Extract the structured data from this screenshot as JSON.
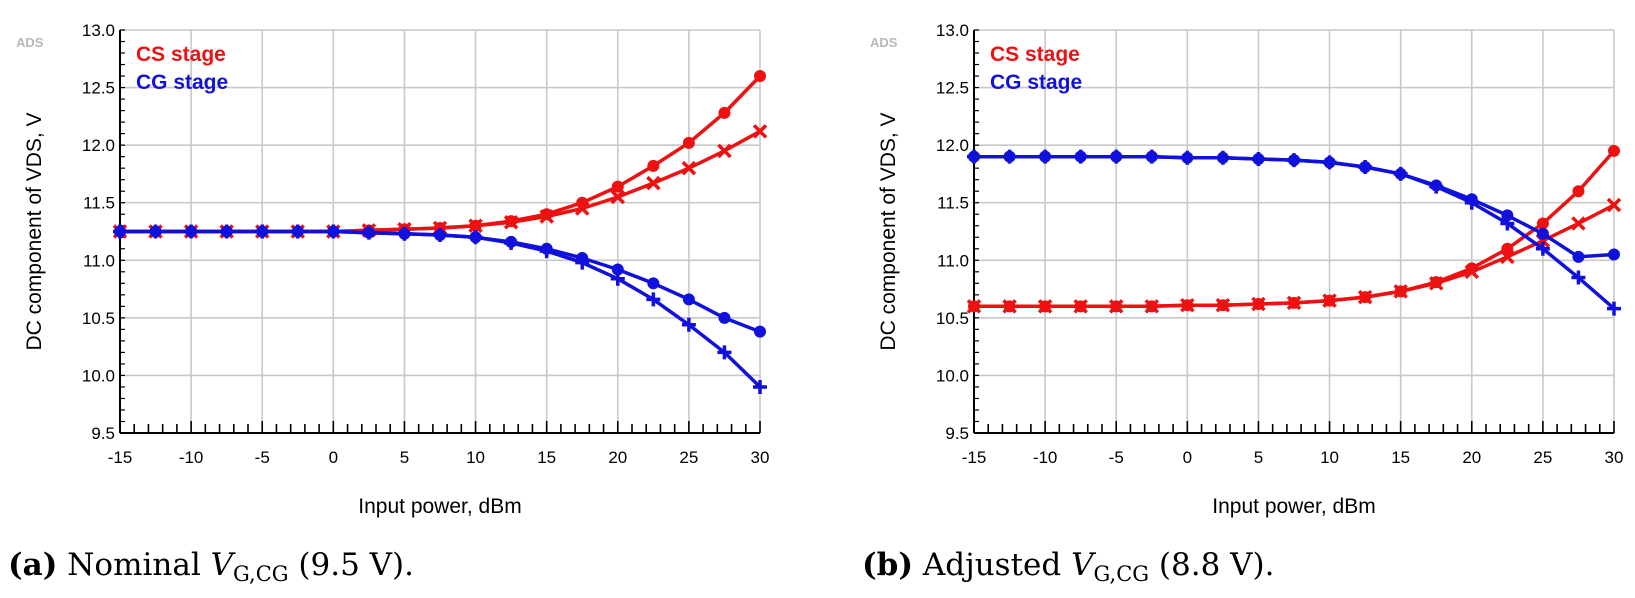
{
  "chart_data": [
    {
      "type": "line",
      "badge": "ADS",
      "xlabel": "Input power, dBm",
      "ylabel": "DC component of VDS, V",
      "xlim": [
        -15,
        30
      ],
      "ylim": [
        9.5,
        13.0
      ],
      "xticks": [
        -15,
        -10,
        -5,
        0,
        5,
        10,
        15,
        20,
        25,
        30
      ],
      "xtick_labels": [
        "-15",
        "-10",
        "-5",
        "0",
        "5",
        "10",
        "15",
        "20",
        "25",
        "30"
      ],
      "yticks": [
        9.5,
        10.0,
        10.5,
        11.0,
        11.5,
        12.0,
        12.5,
        13.0
      ],
      "ytick_labels": [
        "9.5",
        "10.0",
        "10.5",
        "11.0",
        "11.5",
        "12.0",
        "12.5",
        "13.0"
      ],
      "grid": true,
      "legend": [
        {
          "label": "CS stage",
          "color": "#ee1111"
        },
        {
          "label": "CG stage",
          "color": "#1111dd"
        }
      ],
      "series": [
        {
          "name": "CS stage (circle)",
          "stage": "CS",
          "color": "#ee1111",
          "marker": "circle",
          "x": [
            -15,
            -12.5,
            -10,
            -7.5,
            -5,
            -2.5,
            0,
            2.5,
            5,
            7.5,
            10,
            12.5,
            15,
            17.5,
            20,
            22.5,
            25,
            27.5,
            30
          ],
          "y": [
            11.25,
            11.25,
            11.25,
            11.25,
            11.25,
            11.25,
            11.25,
            11.26,
            11.27,
            11.28,
            11.3,
            11.34,
            11.4,
            11.5,
            11.64,
            11.82,
            12.02,
            12.28,
            12.6
          ]
        },
        {
          "name": "CS stage (cross)",
          "stage": "CS",
          "color": "#ee1111",
          "marker": "x",
          "x": [
            -15,
            -12.5,
            -10,
            -7.5,
            -5,
            -2.5,
            0,
            2.5,
            5,
            7.5,
            10,
            12.5,
            15,
            17.5,
            20,
            22.5,
            25,
            27.5,
            30
          ],
          "y": [
            11.25,
            11.25,
            11.25,
            11.25,
            11.25,
            11.25,
            11.25,
            11.26,
            11.27,
            11.28,
            11.3,
            11.33,
            11.38,
            11.45,
            11.55,
            11.67,
            11.8,
            11.95,
            12.12
          ]
        },
        {
          "name": "CG stage (circle)",
          "stage": "CG",
          "color": "#1111dd",
          "marker": "circle",
          "x": [
            -15,
            -12.5,
            -10,
            -7.5,
            -5,
            -2.5,
            0,
            2.5,
            5,
            7.5,
            10,
            12.5,
            15,
            17.5,
            20,
            22.5,
            25,
            27.5,
            30
          ],
          "y": [
            11.25,
            11.25,
            11.25,
            11.25,
            11.25,
            11.25,
            11.25,
            11.24,
            11.23,
            11.22,
            11.2,
            11.16,
            11.1,
            11.02,
            10.92,
            10.8,
            10.66,
            10.5,
            10.38
          ]
        },
        {
          "name": "CG stage (cross)",
          "stage": "CG",
          "color": "#1111dd",
          "marker": "plus",
          "x": [
            -15,
            -12.5,
            -10,
            -7.5,
            -5,
            -2.5,
            0,
            2.5,
            5,
            7.5,
            10,
            12.5,
            15,
            17.5,
            20,
            22.5,
            25,
            27.5,
            30
          ],
          "y": [
            11.25,
            11.25,
            11.25,
            11.25,
            11.25,
            11.25,
            11.25,
            11.24,
            11.23,
            11.22,
            11.2,
            11.15,
            11.08,
            10.98,
            10.84,
            10.66,
            10.44,
            10.2,
            9.9
          ]
        }
      ]
    },
    {
      "type": "line",
      "badge": "ADS",
      "xlabel": "Input power, dBm",
      "ylabel": "DC component of VDS, V",
      "xlim": [
        -15,
        30
      ],
      "ylim": [
        9.5,
        13.0
      ],
      "xticks": [
        -15,
        -10,
        -5,
        0,
        5,
        10,
        15,
        20,
        25,
        30
      ],
      "xtick_labels": [
        "-15",
        "-10",
        "-5",
        "0",
        "5",
        "10",
        "15",
        "20",
        "25",
        "30"
      ],
      "yticks": [
        9.5,
        10.0,
        10.5,
        11.0,
        11.5,
        12.0,
        12.5,
        13.0
      ],
      "ytick_labels": [
        "9.5",
        "10.0",
        "10.5",
        "11.0",
        "11.5",
        "12.0",
        "12.5",
        "13.0"
      ],
      "grid": true,
      "legend": [
        {
          "label": "CS stage",
          "color": "#ee1111"
        },
        {
          "label": "CG stage",
          "color": "#1111dd"
        }
      ],
      "series": [
        {
          "name": "CS stage (circle)",
          "stage": "CS",
          "color": "#ee1111",
          "marker": "circle",
          "x": [
            -15,
            -12.5,
            -10,
            -7.5,
            -5,
            -2.5,
            0,
            2.5,
            5,
            7.5,
            10,
            12.5,
            15,
            17.5,
            20,
            22.5,
            25,
            27.5,
            30
          ],
          "y": [
            10.6,
            10.6,
            10.6,
            10.6,
            10.6,
            10.6,
            10.61,
            10.61,
            10.62,
            10.63,
            10.65,
            10.68,
            10.73,
            10.81,
            10.93,
            11.1,
            11.32,
            11.6,
            11.95
          ]
        },
        {
          "name": "CS stage (cross)",
          "stage": "CS",
          "color": "#ee1111",
          "marker": "x",
          "x": [
            -15,
            -12.5,
            -10,
            -7.5,
            -5,
            -2.5,
            0,
            2.5,
            5,
            7.5,
            10,
            12.5,
            15,
            17.5,
            20,
            22.5,
            25,
            27.5,
            30
          ],
          "y": [
            10.6,
            10.6,
            10.6,
            10.6,
            10.6,
            10.6,
            10.61,
            10.61,
            10.62,
            10.63,
            10.65,
            10.68,
            10.73,
            10.8,
            10.9,
            11.03,
            11.17,
            11.32,
            11.48
          ]
        },
        {
          "name": "CG stage (circle)",
          "stage": "CG",
          "color": "#1111dd",
          "marker": "circle",
          "x": [
            -15,
            -12.5,
            -10,
            -7.5,
            -5,
            -2.5,
            0,
            2.5,
            5,
            7.5,
            10,
            12.5,
            15,
            17.5,
            20,
            22.5,
            25,
            27.5,
            30
          ],
          "y": [
            11.9,
            11.9,
            11.9,
            11.9,
            11.9,
            11.9,
            11.89,
            11.89,
            11.88,
            11.87,
            11.85,
            11.81,
            11.75,
            11.65,
            11.53,
            11.39,
            11.23,
            11.03,
            11.05
          ]
        },
        {
          "name": "CG stage (cross)",
          "stage": "CG",
          "color": "#1111dd",
          "marker": "plus",
          "x": [
            -15,
            -12.5,
            -10,
            -7.5,
            -5,
            -2.5,
            0,
            2.5,
            5,
            7.5,
            10,
            12.5,
            15,
            17.5,
            20,
            22.5,
            25,
            27.5,
            30
          ],
          "y": [
            11.9,
            11.9,
            11.9,
            11.9,
            11.9,
            11.9,
            11.89,
            11.89,
            11.88,
            11.87,
            11.85,
            11.81,
            11.75,
            11.64,
            11.5,
            11.32,
            11.1,
            10.85,
            10.58
          ]
        }
      ]
    }
  ],
  "captions": {
    "a": {
      "label": "(a)",
      "text_before": "Nominal",
      "var": "V",
      "sub": "G,CG",
      "text_after": "(9.5 V)."
    },
    "b": {
      "label": "(b)",
      "text_before": "Adjusted",
      "var": "V",
      "sub": "G,CG",
      "text_after": "(8.8 V)."
    }
  }
}
